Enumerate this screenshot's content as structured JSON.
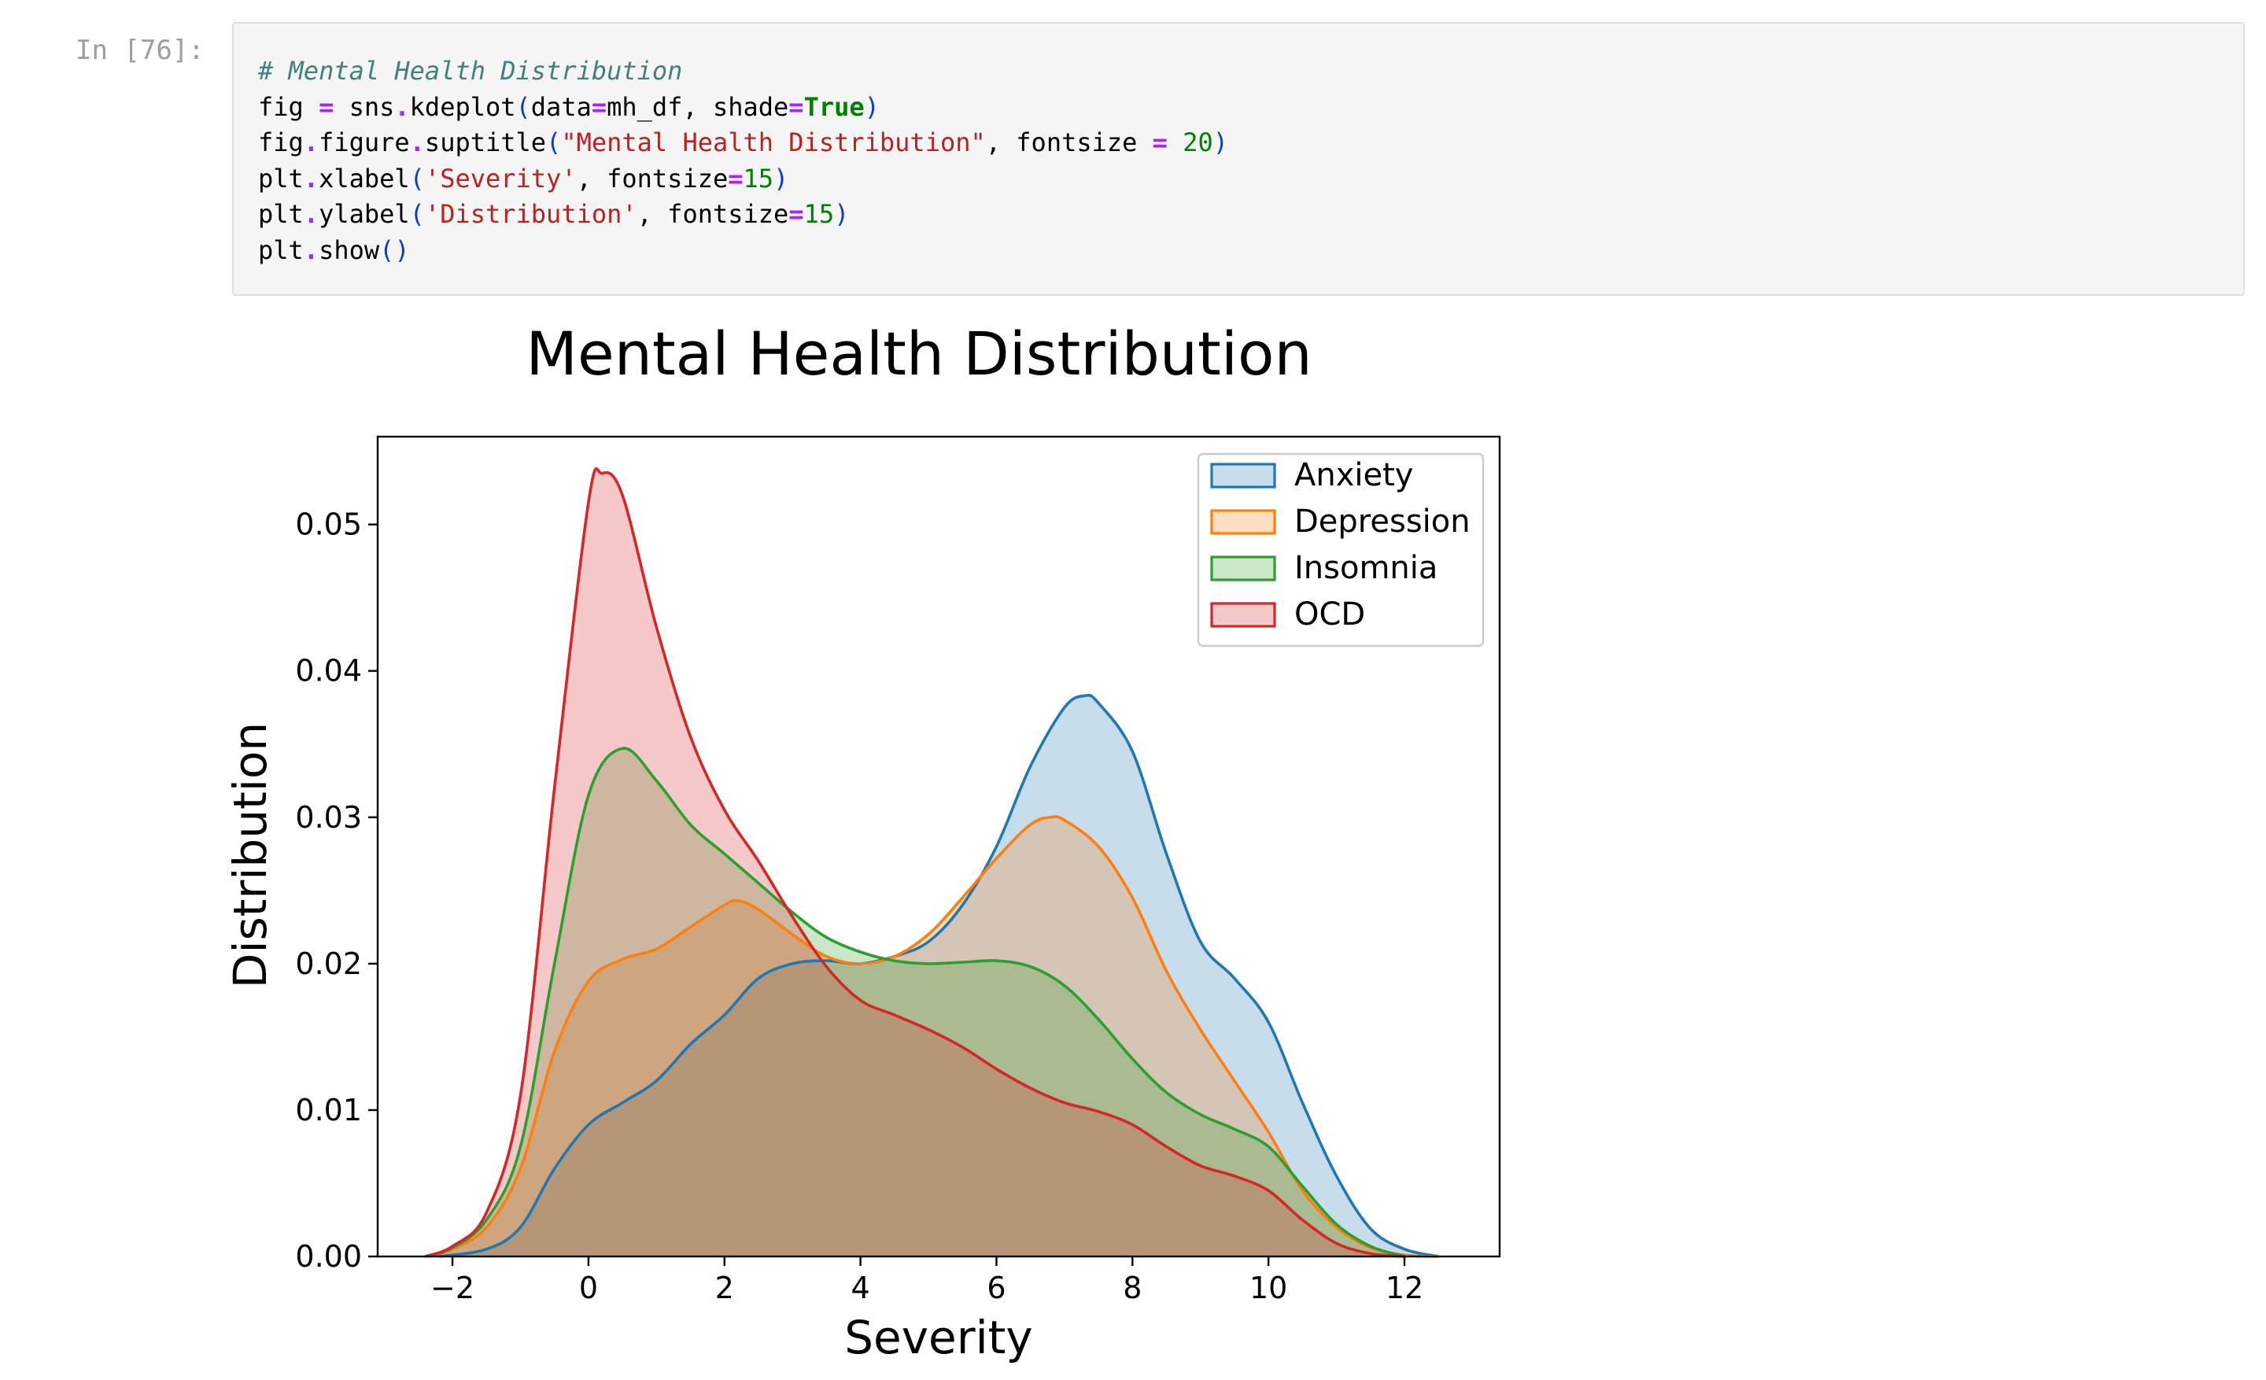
{
  "cell": {
    "prompt": "In [76]:",
    "code": {
      "line1_comment": "# Mental Health Distribution",
      "line2": {
        "a": "fig ",
        "eq": "=",
        "b": " sns",
        "dot": ".",
        "c": "kdeplot",
        "p1": "(",
        "d": "data",
        "eq2": "=",
        "e": "mh_df",
        "comma": ", ",
        "f": "shade",
        "eq3": "=",
        "g": "True",
        "p2": ")"
      },
      "line3": {
        "a": "fig",
        "dot1": ".",
        "b": "figure",
        "dot2": ".",
        "c": "suptitle",
        "p1": "(",
        "s": "\"Mental Health Distribution\"",
        "comma": ", ",
        "d": "fontsize ",
        "eq": "=",
        "n": " 20",
        "p2": ")"
      },
      "line4": {
        "a": "plt",
        "dot": ".",
        "b": "xlabel",
        "p1": "(",
        "s": "'Severity'",
        "comma": ", ",
        "c": "fontsize",
        "eq": "=",
        "n": "15",
        "p2": ")"
      },
      "line5": {
        "a": "plt",
        "dot": ".",
        "b": "ylabel",
        "p1": "(",
        "s": "'Distribution'",
        "comma": ", ",
        "c": "fontsize",
        "eq": "=",
        "n": "15",
        "p2": ")"
      },
      "line6": {
        "a": "plt",
        "dot": ".",
        "b": "show",
        "p": "()"
      }
    }
  },
  "chart_data": {
    "type": "area",
    "title": "Mental Health Distribution",
    "xlabel": "Severity",
    "ylabel": "Distribution",
    "xlim": [
      -3.1,
      13.4
    ],
    "ylim": [
      0,
      0.056
    ],
    "xticks": [
      -2,
      0,
      2,
      4,
      6,
      8,
      10,
      12
    ],
    "xtick_labels": [
      "−2",
      "0",
      "2",
      "4",
      "6",
      "8",
      "10",
      "12"
    ],
    "yticks": [
      0,
      0.01,
      0.02,
      0.03,
      0.04,
      0.05
    ],
    "ytick_labels": [
      "0.00",
      "0.01",
      "0.02",
      "0.03",
      "0.04",
      "0.05"
    ],
    "legend_position": "top-right",
    "series": [
      {
        "name": "Anxiety",
        "color": "#1f77b4",
        "fill": "#1f77b4",
        "x": [
          -2.2,
          -1.5,
          -1,
          -0.5,
          0,
          0.5,
          1,
          1.5,
          2,
          2.5,
          3,
          3.5,
          4,
          4.5,
          5,
          5.5,
          6,
          6.5,
          7,
          7.3,
          7.5,
          8,
          8.5,
          9,
          9.5,
          10,
          10.5,
          11,
          11.5,
          12,
          12.5
        ],
        "y": [
          0,
          0.0005,
          0.002,
          0.006,
          0.009,
          0.0105,
          0.012,
          0.0145,
          0.0165,
          0.019,
          0.02,
          0.0202,
          0.02,
          0.0205,
          0.0215,
          0.024,
          0.028,
          0.0335,
          0.0375,
          0.0383,
          0.0378,
          0.0345,
          0.0275,
          0.0215,
          0.019,
          0.016,
          0.0105,
          0.0055,
          0.0019,
          0.0005,
          0
        ]
      },
      {
        "name": "Depression",
        "color": "#ff7f0e",
        "fill": "#ff7f0e",
        "x": [
          -2.4,
          -2,
          -1.5,
          -1,
          -0.5,
          0,
          0.5,
          1,
          1.5,
          2,
          2.2,
          2.5,
          3,
          3.5,
          4,
          4.5,
          5,
          5.5,
          6,
          6.5,
          6.8,
          7,
          7.5,
          8,
          8.5,
          9,
          9.5,
          10,
          10.5,
          11,
          11.5,
          12,
          12.5
        ],
        "y": [
          0,
          0.0005,
          0.002,
          0.006,
          0.014,
          0.0188,
          0.0203,
          0.021,
          0.0225,
          0.024,
          0.0243,
          0.0237,
          0.022,
          0.0205,
          0.02,
          0.0205,
          0.022,
          0.0245,
          0.0272,
          0.0295,
          0.03,
          0.0298,
          0.028,
          0.0245,
          0.0195,
          0.0155,
          0.012,
          0.0085,
          0.0045,
          0.002,
          0.0006,
          0.0001,
          0
        ]
      },
      {
        "name": "Insomnia",
        "color": "#2ca02c",
        "fill": "#2ca02c",
        "x": [
          -2.4,
          -2,
          -1.5,
          -1,
          -0.5,
          0,
          0.5,
          1,
          1.5,
          2,
          2.5,
          3,
          3.5,
          4,
          4.5,
          5,
          5.5,
          6,
          6.5,
          7,
          7.5,
          8,
          8.5,
          9,
          9.5,
          10,
          10.5,
          11,
          11.5,
          12
        ],
        "y": [
          0,
          0.0006,
          0.0025,
          0.0075,
          0.02,
          0.0315,
          0.0347,
          0.0325,
          0.0295,
          0.0275,
          0.0255,
          0.0235,
          0.0218,
          0.0208,
          0.0202,
          0.02,
          0.0201,
          0.0202,
          0.0198,
          0.0185,
          0.0162,
          0.0135,
          0.0112,
          0.0097,
          0.0087,
          0.0075,
          0.0048,
          0.0022,
          0.0007,
          0
        ]
      },
      {
        "name": "OCD",
        "color": "#d62728",
        "fill": "#d62728",
        "x": [
          -2.4,
          -2,
          -1.5,
          -1,
          -0.5,
          0,
          0.2,
          0.5,
          1,
          1.5,
          2,
          2.5,
          3,
          3.5,
          4,
          4.5,
          5,
          5.5,
          6,
          6.5,
          7,
          7.5,
          8,
          8.5,
          9,
          9.5,
          10,
          10.5,
          11,
          11.5,
          12
        ],
        "y": [
          0,
          0.0007,
          0.003,
          0.011,
          0.032,
          0.0515,
          0.0535,
          0.052,
          0.043,
          0.0355,
          0.0305,
          0.027,
          0.0232,
          0.0198,
          0.0175,
          0.0165,
          0.0155,
          0.0143,
          0.0128,
          0.0115,
          0.0105,
          0.0099,
          0.009,
          0.0075,
          0.0062,
          0.0055,
          0.0045,
          0.0025,
          0.0009,
          0.0002,
          0
        ]
      }
    ]
  }
}
